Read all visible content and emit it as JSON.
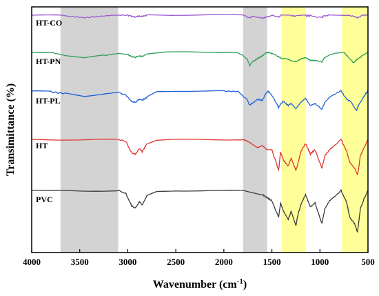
{
  "chart_data": {
    "type": "line",
    "title": "",
    "xlabel": "Wavenumber (cm",
    "xlabel_sup": "-1",
    "xlabel_end": ")",
    "ylabel": "Transimittance (%)",
    "xlim": [
      4000,
      500
    ],
    "x_reversed": true,
    "x_ticks": [
      4000,
      3500,
      3000,
      2500,
      2000,
      1500,
      1000,
      500
    ],
    "y_ticks_shown": false,
    "grid": false,
    "legend": "inline-labels-left",
    "highlight_bands": [
      {
        "from": 3700,
        "to": 3100,
        "color": "#d3d3d3"
      },
      {
        "from": 1800,
        "to": 1550,
        "color": "#d3d3d3"
      },
      {
        "from": 1400,
        "to": 1150,
        "color": "#ffff99"
      },
      {
        "from": 770,
        "to": 500,
        "color": "#ffff99"
      }
    ],
    "series": [
      {
        "name": "HT-CO",
        "color": "#9b59d0",
        "points": [
          [
            4000,
            0.0
          ],
          [
            3700,
            0.0
          ],
          [
            3600,
            0.06
          ],
          [
            3450,
            0.12
          ],
          [
            3300,
            0.06
          ],
          [
            3150,
            0.0
          ],
          [
            3000,
            0.0
          ],
          [
            2960,
            0.05
          ],
          [
            2920,
            0.09
          ],
          [
            2880,
            0.04
          ],
          [
            2850,
            0.06
          ],
          [
            2800,
            0.0
          ],
          [
            2000,
            0.0
          ],
          [
            1800,
            0.0
          ],
          [
            1730,
            0.12
          ],
          [
            1700,
            0.06
          ],
          [
            1650,
            0.1
          ],
          [
            1600,
            0.14
          ],
          [
            1560,
            0.1
          ],
          [
            1500,
            0.02
          ],
          [
            1430,
            0.08
          ],
          [
            1400,
            0.0
          ],
          [
            1300,
            0.02
          ],
          [
            1250,
            0.05
          ],
          [
            1150,
            0.02
          ],
          [
            1100,
            0.03
          ],
          [
            980,
            0.12
          ],
          [
            960,
            0.04
          ],
          [
            900,
            0.0
          ],
          [
            700,
            0.0
          ],
          [
            640,
            0.08
          ],
          [
            600,
            0.12
          ],
          [
            560,
            0.0
          ],
          [
            500,
            0.0
          ]
        ]
      },
      {
        "name": "HT-PN",
        "color": "#2e9e57",
        "points": [
          [
            4000,
            0.0
          ],
          [
            3800,
            0.0
          ],
          [
            3650,
            0.15
          ],
          [
            3450,
            0.28
          ],
          [
            3250,
            0.15
          ],
          [
            3100,
            0.05
          ],
          [
            3000,
            0.1
          ],
          [
            2960,
            0.2
          ],
          [
            2920,
            0.24
          ],
          [
            2880,
            0.16
          ],
          [
            2850,
            0.2
          ],
          [
            2800,
            0.07
          ],
          [
            2600,
            0.0
          ],
          [
            2400,
            0.0
          ],
          [
            2000,
            0.0
          ],
          [
            1850,
            0.02
          ],
          [
            1760,
            0.3
          ],
          [
            1730,
            0.62
          ],
          [
            1700,
            0.45
          ],
          [
            1650,
            0.3
          ],
          [
            1600,
            0.16
          ],
          [
            1570,
            0.05
          ],
          [
            1540,
            0.0
          ],
          [
            1500,
            0.05
          ],
          [
            1430,
            0.2
          ],
          [
            1400,
            0.3
          ],
          [
            1350,
            0.3
          ],
          [
            1300,
            0.4
          ],
          [
            1250,
            0.45
          ],
          [
            1200,
            0.32
          ],
          [
            1150,
            0.25
          ],
          [
            1100,
            0.38
          ],
          [
            1050,
            0.4
          ],
          [
            980,
            0.45
          ],
          [
            950,
            0.25
          ],
          [
            900,
            0.12
          ],
          [
            850,
            0.05
          ],
          [
            750,
            0.0
          ],
          [
            700,
            0.25
          ],
          [
            650,
            0.5
          ],
          [
            620,
            0.35
          ],
          [
            600,
            0.3
          ],
          [
            560,
            0.15
          ],
          [
            500,
            0.0
          ]
        ]
      },
      {
        "name": "HT-PL",
        "color": "#1f5fd6",
        "points": [
          [
            4000,
            0.0
          ],
          [
            3800,
            0.04
          ],
          [
            3650,
            0.12
          ],
          [
            3450,
            0.26
          ],
          [
            3250,
            0.14
          ],
          [
            3100,
            0.06
          ],
          [
            3020,
            0.2
          ],
          [
            2960,
            0.5
          ],
          [
            2920,
            0.55
          ],
          [
            2880,
            0.38
          ],
          [
            2850,
            0.45
          ],
          [
            2800,
            0.3
          ],
          [
            2700,
            0.04
          ],
          [
            2500,
            0.0
          ],
          [
            2000,
            0.0
          ],
          [
            1850,
            0.02
          ],
          [
            1760,
            0.4
          ],
          [
            1730,
            0.68
          ],
          [
            1700,
            0.58
          ],
          [
            1650,
            0.4
          ],
          [
            1600,
            0.45
          ],
          [
            1570,
            0.18
          ],
          [
            1540,
            0.0
          ],
          [
            1500,
            0.2
          ],
          [
            1430,
            0.8
          ],
          [
            1400,
            0.58
          ],
          [
            1380,
            0.5
          ],
          [
            1330,
            0.7
          ],
          [
            1300,
            0.6
          ],
          [
            1250,
            0.85
          ],
          [
            1200,
            0.55
          ],
          [
            1150,
            0.35
          ],
          [
            1100,
            0.7
          ],
          [
            1050,
            0.6
          ],
          [
            980,
            0.9
          ],
          [
            950,
            0.55
          ],
          [
            900,
            0.3
          ],
          [
            850,
            0.15
          ],
          [
            780,
            0.0
          ],
          [
            720,
            0.4
          ],
          [
            680,
            0.5
          ],
          [
            620,
            0.95
          ],
          [
            600,
            0.7
          ],
          [
            560,
            0.4
          ],
          [
            520,
            0.1
          ],
          [
            500,
            0.0
          ]
        ]
      },
      {
        "name": "HT",
        "color": "#e0342f",
        "points": [
          [
            4000,
            0.0
          ],
          [
            3500,
            0.04
          ],
          [
            3100,
            0.0
          ],
          [
            3020,
            0.1
          ],
          [
            2960,
            0.65
          ],
          [
            2920,
            0.72
          ],
          [
            2880,
            0.45
          ],
          [
            2850,
            0.6
          ],
          [
            2800,
            0.2
          ],
          [
            2700,
            0.03
          ],
          [
            2500,
            0.0
          ],
          [
            2000,
            0.0
          ],
          [
            1800,
            0.0
          ],
          [
            1750,
            0.1
          ],
          [
            1700,
            0.25
          ],
          [
            1650,
            0.4
          ],
          [
            1600,
            0.3
          ],
          [
            1550,
            0.5
          ],
          [
            1500,
            0.5
          ],
          [
            1430,
            1.5
          ],
          [
            1410,
            0.6
          ],
          [
            1380,
            1.0
          ],
          [
            1330,
            1.3
          ],
          [
            1300,
            0.9
          ],
          [
            1250,
            1.5
          ],
          [
            1230,
            1.2
          ],
          [
            1200,
            0.6
          ],
          [
            1150,
            0.2
          ],
          [
            1100,
            0.7
          ],
          [
            1050,
            0.5
          ],
          [
            980,
            1.4
          ],
          [
            950,
            0.8
          ],
          [
            900,
            0.5
          ],
          [
            850,
            0.3
          ],
          [
            780,
            0.0
          ],
          [
            720,
            0.6
          ],
          [
            690,
            1.1
          ],
          [
            640,
            1.4
          ],
          [
            610,
            1.7
          ],
          [
            600,
            1.5
          ],
          [
            580,
            0.8
          ],
          [
            540,
            0.4
          ],
          [
            500,
            0.0
          ]
        ]
      },
      {
        "name": "PVC",
        "color": "#3a3a3a",
        "points": [
          [
            4000,
            0.0
          ],
          [
            3500,
            0.02
          ],
          [
            3100,
            0.0
          ],
          [
            3020,
            0.15
          ],
          [
            2960,
            0.75
          ],
          [
            2920,
            0.85
          ],
          [
            2880,
            0.55
          ],
          [
            2850,
            0.7
          ],
          [
            2800,
            0.25
          ],
          [
            2700,
            0.05
          ],
          [
            2500,
            0.0
          ],
          [
            2000,
            0.0
          ],
          [
            1800,
            0.0
          ],
          [
            1700,
            0.1
          ],
          [
            1600,
            0.2
          ],
          [
            1550,
            0.35
          ],
          [
            1500,
            0.5
          ],
          [
            1430,
            1.3
          ],
          [
            1410,
            0.6
          ],
          [
            1380,
            1.0
          ],
          [
            1330,
            1.4
          ],
          [
            1300,
            1.0
          ],
          [
            1250,
            1.7
          ],
          [
            1230,
            1.2
          ],
          [
            1200,
            0.7
          ],
          [
            1150,
            0.2
          ],
          [
            1100,
            0.8
          ],
          [
            1050,
            0.6
          ],
          [
            980,
            1.6
          ],
          [
            950,
            0.9
          ],
          [
            900,
            0.5
          ],
          [
            850,
            0.3
          ],
          [
            780,
            0.0
          ],
          [
            720,
            0.6
          ],
          [
            690,
            1.3
          ],
          [
            640,
            1.6
          ],
          [
            610,
            2.0
          ],
          [
            600,
            1.7
          ],
          [
            580,
            0.9
          ],
          [
            540,
            0.4
          ],
          [
            500,
            0.0
          ]
        ]
      }
    ]
  }
}
